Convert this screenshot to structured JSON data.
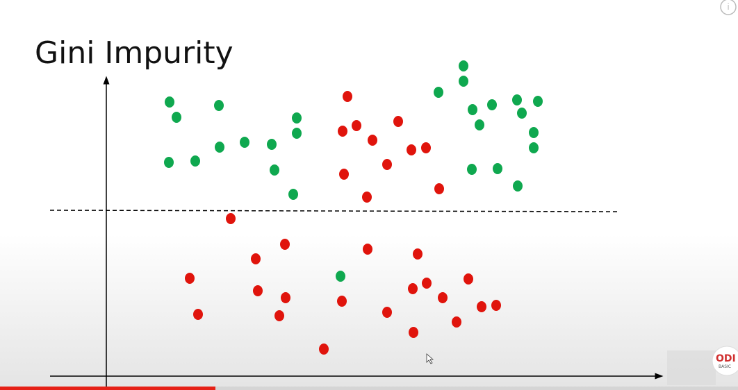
{
  "title": "Gini Impurity",
  "logo": {
    "line1": "ODI",
    "line2": "BASIC"
  }
}
